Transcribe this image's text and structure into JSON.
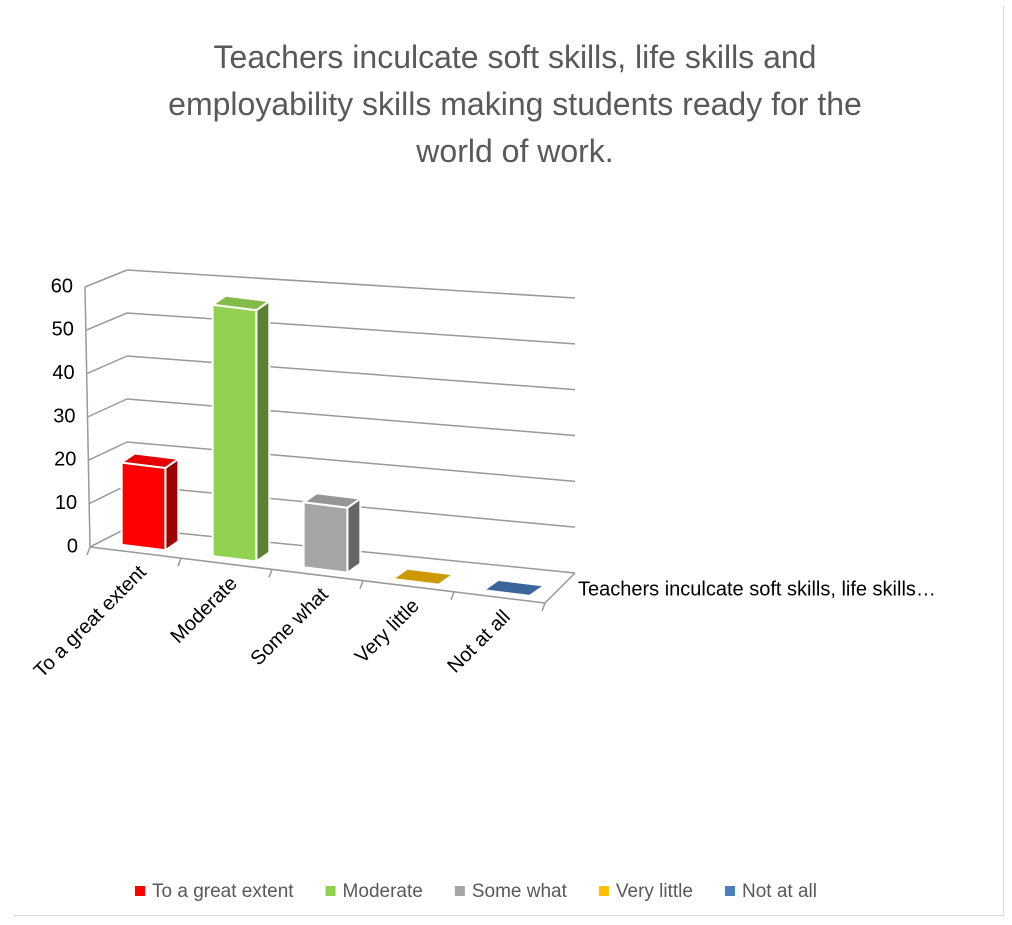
{
  "chart_data": {
    "type": "bar3d",
    "title": "Teachers inculcate soft skills, life skills and employability skills making students ready for the world of work.",
    "categories": [
      "To a great extent",
      "Moderate",
      "Some what",
      "Very little",
      "Not at all"
    ],
    "values": [
      19,
      58,
      15,
      0,
      0
    ],
    "colors": [
      "#ff0000",
      "#92d050",
      "#a5a5a5",
      "#ffc000",
      "#4a7fc0"
    ],
    "depth_label": "Teachers inculcate soft skills, life skills…",
    "ylim": [
      0,
      60
    ],
    "yticks": [
      0,
      10,
      20,
      30,
      40,
      50,
      60
    ],
    "grid": true,
    "legend": "bottom"
  }
}
